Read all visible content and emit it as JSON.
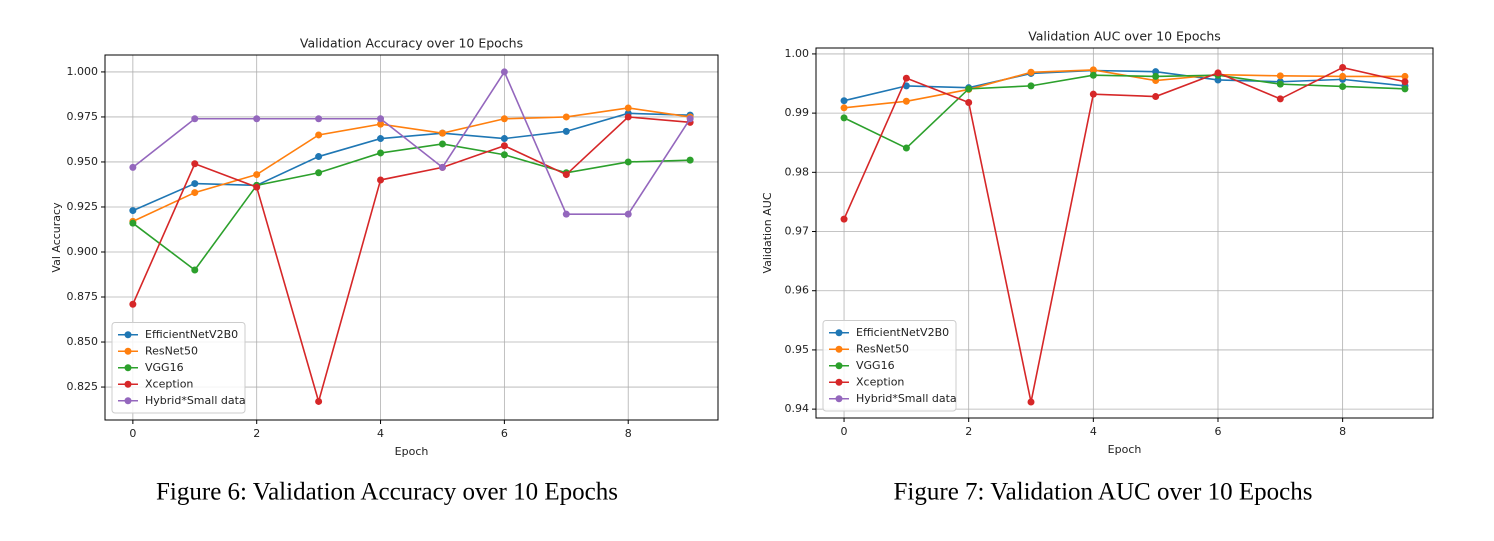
{
  "chart_data": [
    {
      "type": "line",
      "title": "Validation Accuracy over 10 Epochs",
      "xlabel": "Epoch",
      "ylabel": "Val Accuracy",
      "caption": "Figure 6: Validation Accuracy over 10 Epochs",
      "x": [
        0,
        1,
        2,
        3,
        4,
        5,
        6,
        7,
        8,
        9
      ],
      "xlim": [
        -0.45,
        9.45
      ],
      "xticks": [
        0,
        2,
        4,
        6,
        8
      ],
      "ylim": [
        0.8067,
        1.0094
      ],
      "yticks": [
        {
          "value": 0.825,
          "label": "0.825"
        },
        {
          "value": 0.85,
          "label": "0.850"
        },
        0.875,
        {
          "value": 0.9,
          "label": "0.900"
        },
        0.925,
        {
          "value": 0.95,
          "label": "0.950"
        },
        0.975,
        {
          "value": 1.0,
          "label": "1.000"
        }
      ],
      "grid": true,
      "legend": "lower left",
      "series": [
        {
          "name": "EfficientNetV2B0",
          "color": "#1f77b4",
          "values": [
            0.923,
            0.938,
            0.937,
            0.953,
            0.963,
            0.966,
            0.963,
            0.967,
            0.977,
            0.976
          ]
        },
        {
          "name": "ResNet50",
          "color": "#ff7f0e",
          "values": [
            0.917,
            0.933,
            0.943,
            0.965,
            0.971,
            0.966,
            0.974,
            0.975,
            0.98,
            0.975
          ]
        },
        {
          "name": "VGG16",
          "color": "#2ca02c",
          "values": [
            0.916,
            0.89,
            0.937,
            0.944,
            0.955,
            0.96,
            0.954,
            0.944,
            0.95,
            0.951
          ]
        },
        {
          "name": "Xception",
          "color": "#d62728",
          "values": [
            0.871,
            0.949,
            0.936,
            0.817,
            0.94,
            0.947,
            0.959,
            0.943,
            0.975,
            0.972
          ]
        },
        {
          "name": "Hybrid*Small data",
          "color": "#9467bd",
          "values": [
            0.947,
            0.974,
            0.974,
            0.974,
            0.974,
            0.947,
            1.0,
            0.921,
            0.921,
            0.974
          ]
        }
      ]
    },
    {
      "type": "line",
      "title": "Validation AUC over 10 Epochs",
      "xlabel": "Epoch",
      "ylabel": "Validation AUC",
      "caption": "Figure 7: Validation AUC over 10 Epochs",
      "x": [
        0,
        1,
        2,
        3,
        4,
        5,
        6,
        7,
        8,
        9
      ],
      "xlim": [
        -0.45,
        9.45
      ],
      "xticks": [
        0,
        2,
        4,
        6,
        8
      ],
      "ylim": [
        0.9385,
        1.001
      ],
      "yticks": [
        0.94,
        0.95,
        0.96,
        0.97,
        0.98,
        0.99,
        {
          "value": 1.0,
          "label": "1.00"
        }
      ],
      "grid": true,
      "legend": "lower left",
      "series": [
        {
          "name": "EfficientNetV2B0",
          "color": "#1f77b4",
          "values": [
            0.9921,
            0.9946,
            0.9943,
            0.9967,
            0.9972,
            0.997,
            0.9956,
            0.9953,
            0.9957,
            0.9946
          ]
        },
        {
          "name": "ResNet50",
          "color": "#ff7f0e",
          "values": [
            0.9909,
            0.992,
            0.994,
            0.9969,
            0.9973,
            0.9955,
            0.9965,
            0.9963,
            0.9962,
            0.9962
          ]
        },
        {
          "name": "VGG16",
          "color": "#2ca02c",
          "values": [
            0.9892,
            0.9841,
            0.9941,
            0.9946,
            0.9964,
            0.9962,
            0.9964,
            0.9949,
            0.9945,
            0.9941
          ]
        },
        {
          "name": "Xception",
          "color": "#d62728",
          "values": [
            0.9721,
            0.9959,
            0.9918,
            0.9412,
            0.9932,
            0.9928,
            0.9968,
            0.9924,
            0.9977,
            0.9953
          ]
        },
        {
          "name": "Hybrid*Small data",
          "color": "#9467bd",
          "values": [
            null,
            null,
            null,
            null,
            null,
            null,
            null,
            null,
            null,
            null
          ]
        }
      ]
    }
  ]
}
